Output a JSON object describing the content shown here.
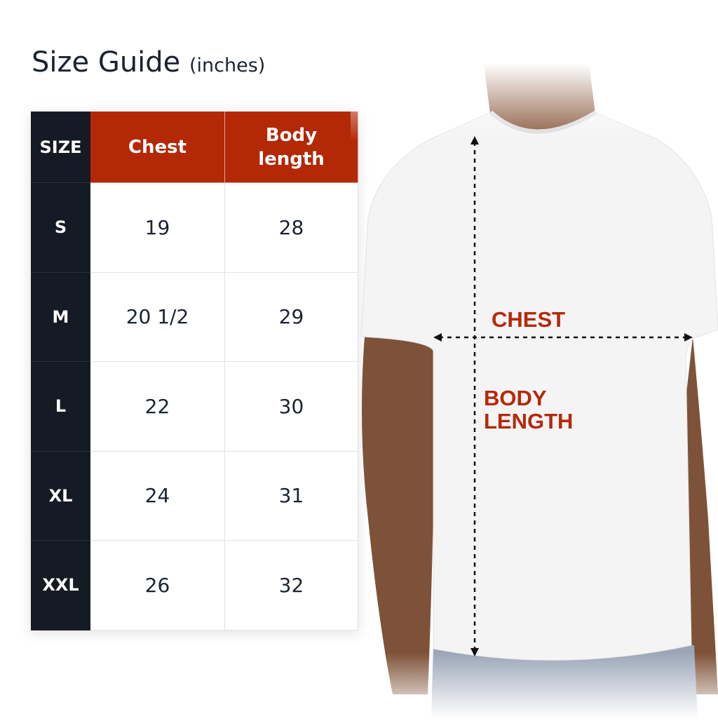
{
  "title": {
    "main": "Size Guide",
    "unit": "(inches)"
  },
  "table": {
    "headers": [
      "SIZE",
      "Chest",
      "Body length"
    ],
    "rows": [
      {
        "size": "S",
        "chest": "19",
        "body_length": "28"
      },
      {
        "size": "M",
        "chest": "20 1/2",
        "body_length": "29"
      },
      {
        "size": "L",
        "chest": "22",
        "body_length": "30"
      },
      {
        "size": "XL",
        "chest": "24",
        "body_length": "31"
      },
      {
        "size": "XXL",
        "chest": "26",
        "body_length": "32"
      }
    ]
  },
  "diagram": {
    "chest_label": "CHEST",
    "body_length_label": [
      "BODY",
      "LENGTH"
    ]
  },
  "colors": {
    "header_accent": "#b32806",
    "size_column": "#151b24",
    "label": "#b5290a",
    "text": "#1b2330"
  }
}
